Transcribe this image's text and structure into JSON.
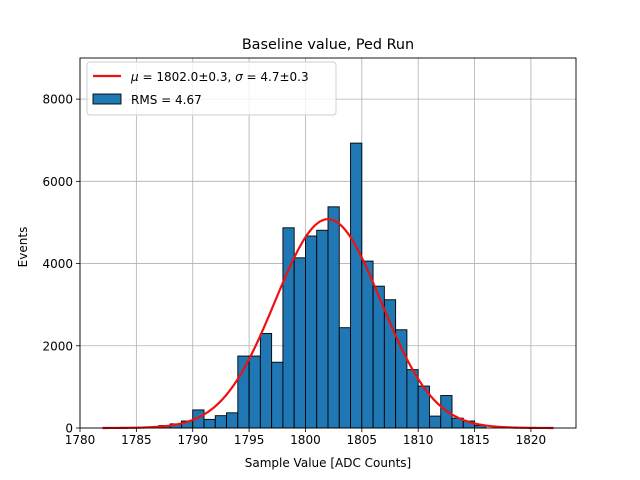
{
  "chart_data": {
    "type": "bar",
    "title": "Baseline value, Ped Run",
    "xlabel": "Sample Value [ADC Counts]",
    "ylabel": "Events",
    "xlim": [
      1780,
      1824
    ],
    "ylim": [
      0,
      9000
    ],
    "grid": true,
    "legend_position": "top-left",
    "xticks": [
      "1780",
      "1785",
      "1790",
      "1795",
      "1800",
      "1805",
      "1810",
      "1815",
      "1820"
    ],
    "yticks": [
      "0",
      "2000",
      "4000",
      "6000",
      "8000"
    ],
    "bin_width": 1,
    "bars": [
      {
        "x": 1787.5,
        "value": 60
      },
      {
        "x": 1788.5,
        "value": 100
      },
      {
        "x": 1789.5,
        "value": 170
      },
      {
        "x": 1790.5,
        "value": 440
      },
      {
        "x": 1791.5,
        "value": 210
      },
      {
        "x": 1792.5,
        "value": 300
      },
      {
        "x": 1793.5,
        "value": 370
      },
      {
        "x": 1794.5,
        "value": 1750
      },
      {
        "x": 1795.5,
        "value": 1750
      },
      {
        "x": 1796.5,
        "value": 2300
      },
      {
        "x": 1797.5,
        "value": 1600
      },
      {
        "x": 1798.5,
        "value": 4870
      },
      {
        "x": 1799.5,
        "value": 4140
      },
      {
        "x": 1800.5,
        "value": 4670
      },
      {
        "x": 1801.5,
        "value": 4810
      },
      {
        "x": 1802.5,
        "value": 5380
      },
      {
        "x": 1803.5,
        "value": 2440
      },
      {
        "x": 1804.5,
        "value": 6930
      },
      {
        "x": 1805.5,
        "value": 4060
      },
      {
        "x": 1806.5,
        "value": 3450
      },
      {
        "x": 1807.5,
        "value": 3120
      },
      {
        "x": 1808.5,
        "value": 2390
      },
      {
        "x": 1809.5,
        "value": 1420
      },
      {
        "x": 1810.5,
        "value": 1020
      },
      {
        "x": 1811.5,
        "value": 290
      },
      {
        "x": 1812.5,
        "value": 790
      },
      {
        "x": 1813.5,
        "value": 240
      },
      {
        "x": 1814.5,
        "value": 170
      },
      {
        "x": 1815.5,
        "value": 60
      }
    ],
    "fit": {
      "type": "gaussian",
      "mu": 1802.0,
      "sigma": 4.7,
      "amplitude": 5080,
      "x_range": [
        1782,
        1822
      ],
      "color": "#ee1111"
    },
    "series": [
      {
        "name": "$\\mu = 1802.0 \\pm 0.3$, $\\sigma = 4.7 \\pm 0.3$",
        "kind": "line",
        "color": "#ee1111"
      },
      {
        "name": "RMS = 4.67",
        "kind": "bar",
        "color": "#1f77b4"
      }
    ],
    "legend": {
      "mu_symbol": "μ",
      "mu_text": " = 1802.0±0.3, ",
      "sigma_symbol": "σ",
      "sigma_text": " = 4.7±0.3",
      "rms_label": "RMS = 4.67"
    }
  }
}
